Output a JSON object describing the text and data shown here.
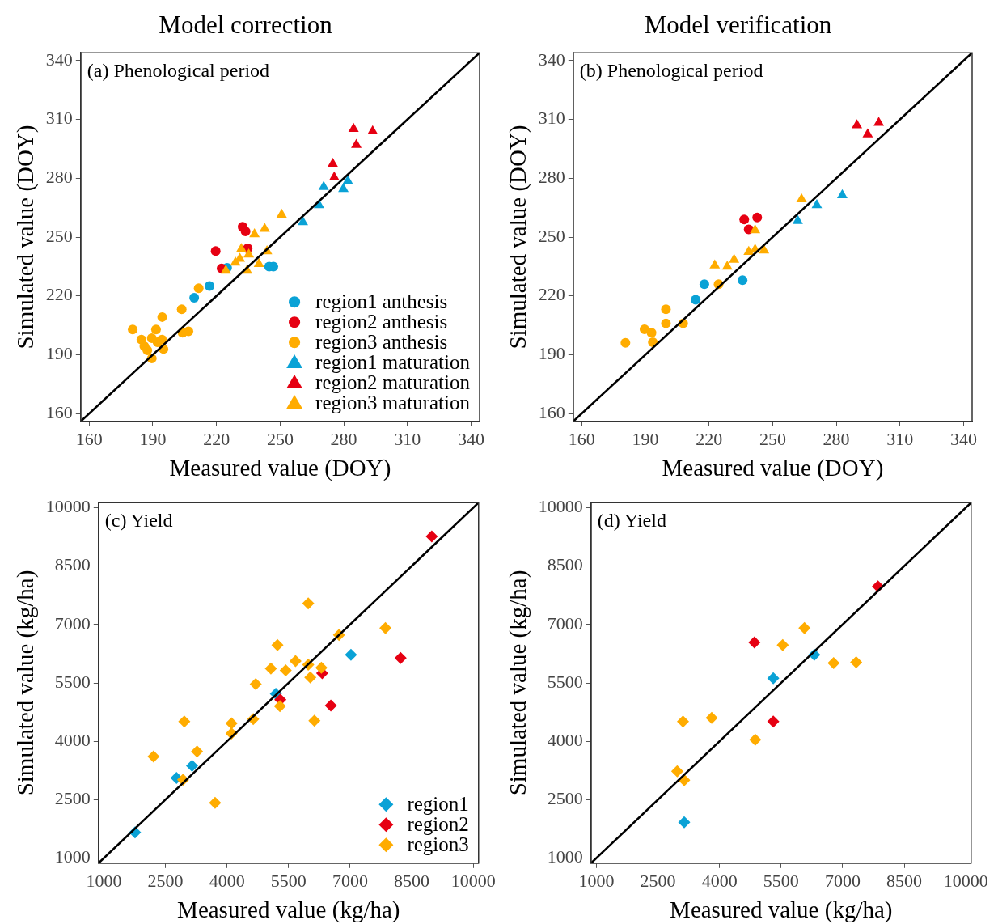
{
  "chart_data": [
    {
      "type": "scatter",
      "title": "Model correction",
      "xlabel": "Measured value (DOY)",
      "ylabel": "Simulated value (DOY)",
      "annotations": [
        "(a) Phenological period"
      ],
      "xlim": [
        156,
        344
      ],
      "ylim": [
        156,
        344
      ],
      "xticks": [
        160,
        190,
        220,
        250,
        280,
        310,
        340
      ],
      "yticks": [
        160,
        190,
        220,
        250,
        280,
        310,
        340
      ],
      "grid": false,
      "legend": "bottom right",
      "series": [
        {
          "type": "line",
          "color": "#000000",
          "x": [
            156,
            344
          ],
          "values": [
            156,
            344
          ],
          "line_style": "solid",
          "marker": "none"
        },
        {
          "name": "region1 anthesis",
          "color": "#0aa2d6",
          "marker": "circle",
          "x": [
            225,
            244.8,
            246.8,
            216.7,
            209.5
          ],
          "values": [
            234.3,
            234.9,
            234.9,
            225,
            219.1
          ]
        },
        {
          "name": "region2 anthesis",
          "color": "#e60012",
          "marker": "circle",
          "x": [
            232.3,
            233.7,
            219.6,
            234.7,
            222.4
          ],
          "values": [
            255.3,
            252.9,
            242.9,
            244.2,
            234
          ]
        },
        {
          "name": "region3 anthesis",
          "color": "#ffac00",
          "marker": "circle",
          "x": [
            211.6,
            203.6,
            194.4,
            180.5,
            191.5,
            204,
            206.8,
            184.6,
            189.5,
            194.3,
            186,
            195,
            187.4,
            189.5,
            192.2
          ],
          "values": [
            223.9,
            213.2,
            209.2,
            202.9,
            202.9,
            201.2,
            201.9,
            197.7,
            198.4,
            197.7,
            194.3,
            192.9,
            192.2,
            188.1,
            196.4
          ]
        },
        {
          "name": "region1 maturation",
          "color": "#0aa2d6",
          "marker": "triangle",
          "x": [
            270.5,
            281.9,
            279.8,
            268.3,
            260.7
          ],
          "values": [
            275.6,
            278.6,
            274.6,
            266.3,
            257.6
          ]
        },
        {
          "name": "region2 maturation",
          "color": "#e60012",
          "marker": "triangle",
          "x": [
            284.6,
            293.6,
            285.9,
            274.8,
            275.5
          ],
          "values": [
            305.2,
            304,
            297,
            287.3,
            280.4
          ]
        },
        {
          "name": "region3 maturation",
          "color": "#ffac00",
          "marker": "triangle",
          "x": [
            250.7,
            242.7,
            237.9,
            231.7,
            243.8,
            235.2,
            231,
            240,
            224.4,
            234.4,
            228.9
          ],
          "values": [
            261.4,
            254.2,
            251.4,
            243.9,
            242.8,
            241.1,
            239,
            236.3,
            232.9,
            232.9,
            237
          ]
        }
      ]
    },
    {
      "type": "scatter",
      "title": "Model verification",
      "xlabel": "Measured value (DOY)",
      "ylabel": "Simulated value (DOY)",
      "annotations": [
        "(b) Phenological period"
      ],
      "xlim": [
        156,
        344
      ],
      "ylim": [
        156,
        344
      ],
      "xticks": [
        160,
        190,
        220,
        250,
        280,
        310,
        340
      ],
      "yticks": [
        160,
        190,
        220,
        250,
        280,
        310,
        340
      ],
      "grid": false,
      "series": [
        {
          "type": "line",
          "color": "#000000",
          "x": [
            156,
            344
          ],
          "values": [
            156,
            344
          ],
          "line_style": "solid",
          "marker": "none"
        },
        {
          "color": "#0aa2d6",
          "marker": "circle",
          "x": [
            235.8,
            217.8,
            213.7
          ],
          "values": [
            228,
            226,
            218
          ]
        },
        {
          "color": "#e60012",
          "marker": "circle",
          "x": [
            236.6,
            242.7,
            238.7
          ],
          "values": [
            259,
            260,
            253.9
          ]
        },
        {
          "color": "#ffac00",
          "marker": "circle",
          "x": [
            224.5,
            199.7,
            199.7,
            207.8,
            189.6,
            192.9,
            193.5,
            180.6
          ],
          "values": [
            226,
            213.2,
            206,
            206,
            203,
            201.2,
            196.4,
            196
          ]
        },
        {
          "color": "#0aa2d6",
          "marker": "triangle",
          "x": [
            282.8,
            270.8,
            261.8
          ],
          "values": [
            271.4,
            266.3,
            258.3
          ]
        },
        {
          "color": "#e60012",
          "marker": "triangle",
          "x": [
            289.7,
            300,
            294.8
          ],
          "values": [
            307,
            308.3,
            302.4
          ]
        },
        {
          "color": "#ffac00",
          "marker": "triangle",
          "x": [
            263.6,
            241.7,
            238.7,
            241.7,
            245.9,
            231.8,
            228.6,
            222.7
          ],
          "values": [
            269.3,
            253.5,
            242.5,
            243.6,
            243.2,
            238.4,
            234.9,
            235.6
          ]
        }
      ]
    },
    {
      "type": "scatter",
      "xlabel": "Measured value (kg/ha)",
      "ylabel": "Simulated value (kg/ha)",
      "annotations": [
        "(c) Yield"
      ],
      "xlim": [
        870,
        10130
      ],
      "ylim": [
        870,
        10130
      ],
      "xticks": [
        1000,
        2500,
        4000,
        5500,
        7000,
        8500,
        10000
      ],
      "yticks": [
        1000,
        2500,
        4000,
        5500,
        7000,
        8500,
        10000
      ],
      "grid": false,
      "legend": "bottom right",
      "series": [
        {
          "type": "line",
          "color": "#000000",
          "x": [
            870,
            10130
          ],
          "values": [
            870,
            10130
          ],
          "line_style": "solid",
          "marker": "none"
        },
        {
          "name": "region1",
          "color": "#0aa2d6",
          "marker": "diamond",
          "x": [
            1760,
            2770,
            3150,
            5190,
            7020
          ],
          "values": [
            1660,
            3060,
            3370,
            5220,
            6220
          ]
        },
        {
          "name": "region2",
          "color": "#e60012",
          "marker": "diamond",
          "x": [
            8990,
            8230,
            6320,
            5300,
            6530
          ],
          "values": [
            9260,
            6140,
            5750,
            5070,
            4920
          ]
        },
        {
          "name": "region3",
          "color": "#ffac00",
          "marker": "diamond",
          "x": [
            5980,
            7860,
            6730,
            5230,
            5670,
            5070,
            5430,
            5980,
            6300,
            6030,
            4700,
            5290,
            6130,
            4640,
            4110,
            4110,
            2960,
            3270,
            2210,
            2930,
            3710
          ],
          "values": [
            7540,
            6910,
            6730,
            6470,
            6060,
            5870,
            5820,
            5970,
            5890,
            5640,
            5470,
            4900,
            4530,
            4570,
            4460,
            4200,
            4510,
            3740,
            3610,
            3010,
            2420
          ]
        }
      ]
    },
    {
      "type": "scatter",
      "xlabel": "Measured value (kg/ha)",
      "ylabel": "Simulated value (kg/ha)",
      "annotations": [
        "(d) Yield"
      ],
      "xlim": [
        870,
        10130
      ],
      "ylim": [
        870,
        10130
      ],
      "xticks": [
        1000,
        2500,
        4000,
        5500,
        7000,
        8500,
        10000
      ],
      "yticks": [
        1000,
        2500,
        4000,
        5500,
        7000,
        8500,
        10000
      ],
      "grid": false,
      "series": [
        {
          "type": "line",
          "color": "#000000",
          "x": [
            870,
            10130
          ],
          "values": [
            870,
            10130
          ],
          "line_style": "solid",
          "marker": "none"
        },
        {
          "color": "#0aa2d6",
          "marker": "diamond",
          "x": [
            6310,
            5310,
            3140
          ],
          "values": [
            6220,
            5620,
            1920
          ]
        },
        {
          "color": "#e60012",
          "marker": "diamond",
          "x": [
            7860,
            4850,
            5310
          ],
          "values": [
            7980,
            6540,
            4510
          ]
        },
        {
          "color": "#ffac00",
          "marker": "diamond",
          "x": [
            6070,
            5540,
            6780,
            7330,
            3110,
            3810,
            4870,
            2970,
            3140
          ],
          "values": [
            6910,
            6470,
            6010,
            6030,
            4510,
            4600,
            4040,
            3230,
            3000
          ]
        }
      ]
    }
  ]
}
